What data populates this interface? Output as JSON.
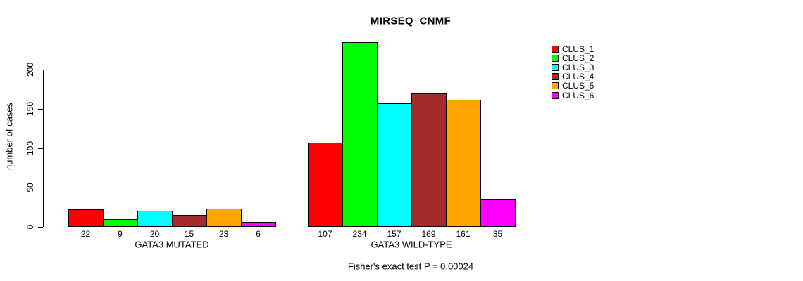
{
  "chart_data": {
    "type": "bar",
    "title": "MIRSEQ_CNMF",
    "ylabel": "number of cases",
    "xlabel": "",
    "ylim": [
      0,
      240
    ],
    "yticks": [
      0,
      50,
      100,
      150,
      200
    ],
    "grid": false,
    "legend_position": "right",
    "legend": [
      {
        "label": "CLUS_1",
        "color": "#ff0000"
      },
      {
        "label": "CLUS_2",
        "color": "#00ff00"
      },
      {
        "label": "CLUS_3",
        "color": "#00ffff"
      },
      {
        "label": "CLUS_4",
        "color": "#a52a2a"
      },
      {
        "label": "CLUS_5",
        "color": "#ffa500"
      },
      {
        "label": "CLUS_6",
        "color": "#ff00ff"
      }
    ],
    "groups": [
      {
        "label": "GATA3 MUTATED",
        "values": [
          22,
          9,
          20,
          15,
          23,
          6
        ]
      },
      {
        "label": "GATA3 WILD-TYPE",
        "values": [
          107,
          234,
          157,
          169,
          161,
          35
        ]
      }
    ],
    "bar_value_labels_shown": true,
    "annotation": "Fisher's exact test P = 0.00024"
  }
}
